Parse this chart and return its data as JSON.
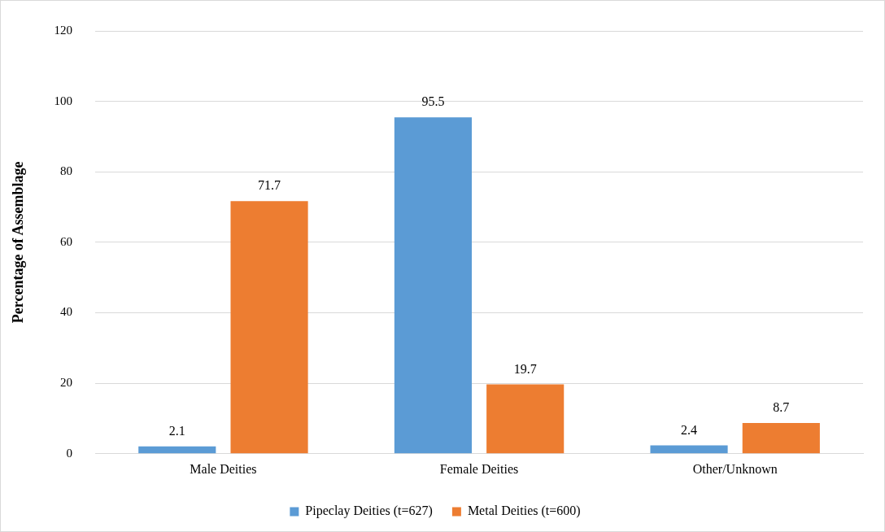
{
  "chart_data": {
    "type": "bar",
    "ylabel": "Percentage of Assemblage",
    "categories": [
      "Male Deities",
      "Female Deities",
      "Other/Unknown"
    ],
    "series": [
      {
        "name": "Pipeclay Deities (t=627)",
        "color": "#5b9bd5",
        "values": [
          2.1,
          95.5,
          2.4
        ]
      },
      {
        "name": "Metal Deities (t=600)",
        "color": "#ed7d31",
        "values": [
          71.7,
          19.7,
          8.7
        ]
      }
    ],
    "ylim": [
      0,
      120
    ],
    "yticks": [
      0,
      20,
      40,
      60,
      80,
      100,
      120
    ],
    "grid": "y",
    "legend": "bottom",
    "data_labels": true
  }
}
